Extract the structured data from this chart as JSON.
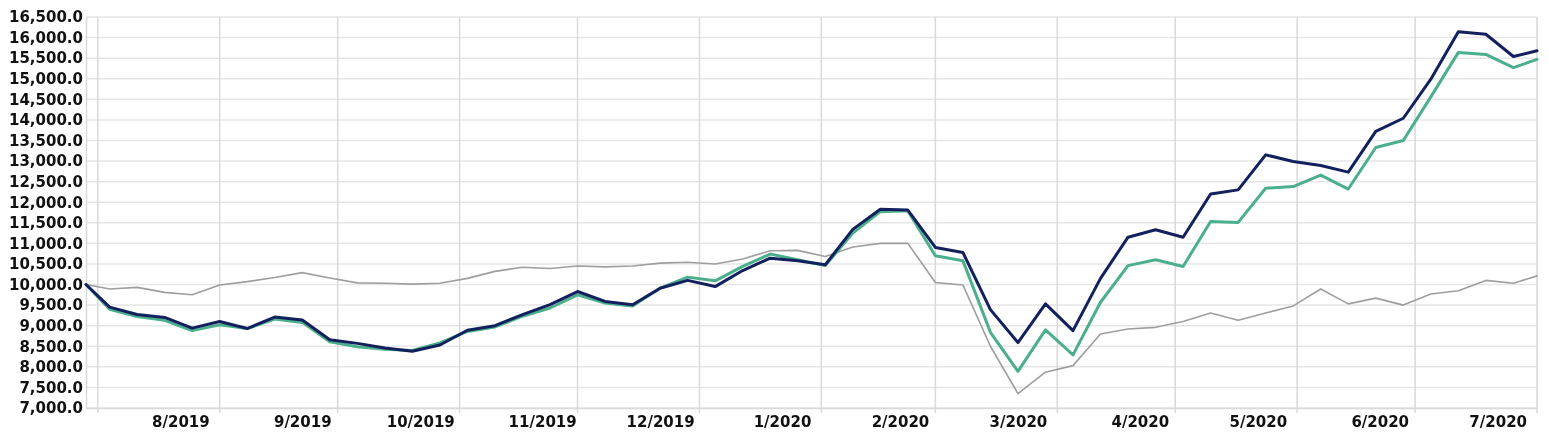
{
  "chart_data": {
    "type": "line",
    "x": [
      "2019-07-28",
      "2019-08-03",
      "2019-08-10",
      "2019-08-17",
      "2019-08-24",
      "2019-08-31",
      "2019-09-07",
      "2019-09-14",
      "2019-09-21",
      "2019-09-28",
      "2019-10-05",
      "2019-10-12",
      "2019-10-19",
      "2019-10-26",
      "2019-11-02",
      "2019-11-09",
      "2019-11-16",
      "2019-11-23",
      "2019-11-30",
      "2019-12-07",
      "2019-12-14",
      "2019-12-21",
      "2019-12-28",
      "2020-01-04",
      "2020-01-11",
      "2020-01-18",
      "2020-01-25",
      "2020-02-01",
      "2020-02-08",
      "2020-02-15",
      "2020-02-22",
      "2020-02-29",
      "2020-03-07",
      "2020-03-14",
      "2020-03-21",
      "2020-03-28",
      "2020-04-04",
      "2020-04-11",
      "2020-04-18",
      "2020-04-25",
      "2020-05-02",
      "2020-05-09",
      "2020-05-16",
      "2020-05-23",
      "2020-05-30",
      "2020-06-06",
      "2020-06-13",
      "2020-06-20",
      "2020-06-27",
      "2020-07-04",
      "2020-07-11",
      "2020-07-18",
      "2020-07-25",
      "2020-07-31"
    ],
    "series": [
      {
        "color": "#9e9e9e",
        "values": [
          10000,
          9890,
          9930,
          9810,
          9750,
          9990,
          10070,
          10170,
          10290,
          10160,
          10040,
          10030,
          10010,
          10030,
          10150,
          10320,
          10420,
          10390,
          10450,
          10430,
          10450,
          10520,
          10540,
          10500,
          10620,
          10820,
          10830,
          10680,
          10910,
          11000,
          11000,
          10050,
          9990,
          8500,
          7350,
          7870,
          8030,
          8800,
          8920,
          8960,
          9100,
          9310,
          9130,
          9310,
          9480,
          9890,
          9530,
          9670,
          9500,
          9770,
          9850,
          10100,
          10030,
          10210
        ]
      },
      {
        "color": "#4caf8c",
        "values": [
          10000,
          9400,
          9220,
          9130,
          8880,
          9020,
          8930,
          9160,
          9080,
          8610,
          8490,
          8430,
          8400,
          8580,
          8860,
          8970,
          9230,
          9430,
          9750,
          9550,
          9480,
          9910,
          10180,
          10090,
          10440,
          10740,
          10600,
          10460,
          11250,
          11770,
          11790,
          10700,
          10580,
          8840,
          7890,
          8900,
          8290,
          9570,
          10460,
          10600,
          10440,
          11530,
          11510,
          12340,
          12380,
          12660,
          12320,
          13330,
          13500,
          14560,
          15640,
          15590,
          15270,
          15470
        ]
      },
      {
        "color": "#13205e",
        "values": [
          10000,
          9450,
          9270,
          9200,
          8940,
          9100,
          8930,
          9210,
          9140,
          8660,
          8570,
          8460,
          8380,
          8530,
          8890,
          9000,
          9270,
          9510,
          9830,
          9590,
          9510,
          9910,
          10100,
          9950,
          10340,
          10640,
          10580,
          10480,
          11340,
          11830,
          11810,
          10900,
          10780,
          9390,
          8590,
          9530,
          8880,
          10150,
          11150,
          11330,
          11150,
          12200,
          12300,
          13150,
          12990,
          12890,
          12730,
          13720,
          14040,
          14990,
          16140,
          16080,
          15540,
          15680
        ]
      }
    ],
    "xlim": [
      "2019-07-28",
      "2020-07-31"
    ],
    "xticks": [
      {
        "value": "2019-07-31",
        "label": null
      },
      {
        "value": "2019-08-21",
        "label": "8/2019"
      },
      {
        "value": "2019-08-31",
        "label": null
      },
      {
        "value": "2019-09-21",
        "label": "9/2019"
      },
      {
        "value": "2019-09-30",
        "label": null
      },
      {
        "value": "2019-10-21",
        "label": "10/2019"
      },
      {
        "value": "2019-10-31",
        "label": null
      },
      {
        "value": "2019-11-21",
        "label": "11/2019"
      },
      {
        "value": "2019-11-30",
        "label": null
      },
      {
        "value": "2019-12-21",
        "label": "12/2019"
      },
      {
        "value": "2019-12-31",
        "label": null
      },
      {
        "value": "2020-01-21",
        "label": "1/2020"
      },
      {
        "value": "2020-01-31",
        "label": null
      },
      {
        "value": "2020-02-20",
        "label": "2/2020"
      },
      {
        "value": "2020-02-29",
        "label": null
      },
      {
        "value": "2020-03-21",
        "label": "3/2020"
      },
      {
        "value": "2020-03-31",
        "label": null
      },
      {
        "value": "2020-04-21",
        "label": "4/2020"
      },
      {
        "value": "2020-04-30",
        "label": null
      },
      {
        "value": "2020-05-21",
        "label": "5/2020"
      },
      {
        "value": "2020-05-31",
        "label": null
      },
      {
        "value": "2020-06-21",
        "label": "6/2020"
      },
      {
        "value": "2020-06-30",
        "label": null
      },
      {
        "value": "2020-07-21",
        "label": "7/2020"
      },
      {
        "value": "2020-07-31",
        "label": null
      }
    ],
    "ylim": [
      7000,
      16500
    ],
    "yticks": [
      {
        "value": 7000,
        "label": "7,000.0"
      },
      {
        "value": 7500,
        "label": "7,500.0"
      },
      {
        "value": 8000,
        "label": "8,000.0"
      },
      {
        "value": 8500,
        "label": "8,500.0"
      },
      {
        "value": 9000,
        "label": "9,000.0"
      },
      {
        "value": 9500,
        "label": "9,500.0"
      },
      {
        "value": 10000,
        "label": "10,000.0"
      },
      {
        "value": 10500,
        "label": "10,500.0"
      },
      {
        "value": 11000,
        "label": "11,000.0"
      },
      {
        "value": 11500,
        "label": "11,500.0"
      },
      {
        "value": 12000,
        "label": "12,000.0"
      },
      {
        "value": 12500,
        "label": "12,500.0"
      },
      {
        "value": 13000,
        "label": "13,000.0"
      },
      {
        "value": 13500,
        "label": "13,500.0"
      },
      {
        "value": 14000,
        "label": "14,000.0"
      },
      {
        "value": 14500,
        "label": "14,500.0"
      },
      {
        "value": 15000,
        "label": "15,000.0"
      },
      {
        "value": 15500,
        "label": "15,500.0"
      },
      {
        "value": 16000,
        "label": "16,000.0"
      },
      {
        "value": 16500,
        "label": "16,500.0"
      }
    ],
    "grid": true
  }
}
